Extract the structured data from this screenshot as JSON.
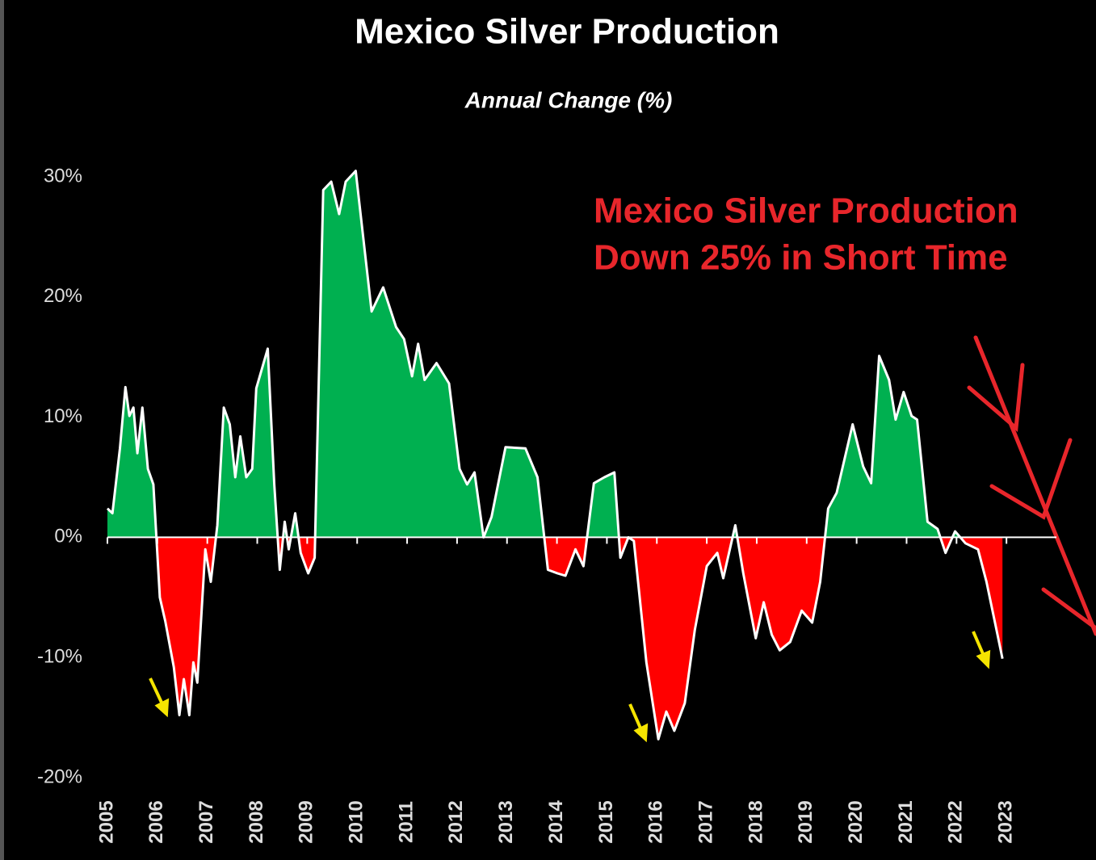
{
  "chart_data": {
    "type": "area",
    "title": "Mexico Silver Production",
    "subtitle": "Annual Change (%)",
    "annotation": [
      "Mexico Silver Production",
      "Down 25% in Short Time"
    ],
    "x": [
      2005.0,
      2005.1,
      2005.25,
      2005.36,
      2005.44,
      2005.52,
      2005.6,
      2005.7,
      2005.81,
      2005.92,
      2006.05,
      2006.16,
      2006.33,
      2006.44,
      2006.53,
      2006.64,
      2006.72,
      2006.8,
      2006.96,
      2007.07,
      2007.2,
      2007.33,
      2007.45,
      2007.56,
      2007.66,
      2007.78,
      2007.9,
      2007.98,
      2008.21,
      2008.34,
      2008.45,
      2008.55,
      2008.63,
      2008.76,
      2008.87,
      2009.02,
      2009.15,
      2009.32,
      2009.48,
      2009.64,
      2009.77,
      2009.97,
      2010.29,
      2010.52,
      2010.78,
      2010.94,
      2011.1,
      2011.22,
      2011.35,
      2011.59,
      2011.84,
      2012.05,
      2012.2,
      2012.35,
      2012.53,
      2012.69,
      2012.97,
      2013.37,
      2013.61,
      2013.82,
      2014.01,
      2014.17,
      2014.37,
      2014.53,
      2014.74,
      2014.95,
      2015.15,
      2015.27,
      2015.43,
      2015.54,
      2015.79,
      2016.03,
      2016.19,
      2016.35,
      2016.56,
      2016.76,
      2017.0,
      2017.21,
      2017.33,
      2017.57,
      2017.73,
      2017.98,
      2018.14,
      2018.3,
      2018.46,
      2018.67,
      2018.9,
      2019.11,
      2019.27,
      2019.43,
      2019.6,
      2019.92,
      2020.13,
      2020.29,
      2020.45,
      2020.65,
      2020.78,
      2020.94,
      2021.1,
      2021.21,
      2021.42,
      2021.62,
      2021.78,
      2021.97,
      2022.18,
      2022.43,
      2022.6,
      2022.8,
      2022.92
    ],
    "values": [
      2.4,
      2,
      7.4,
      12.5,
      10.1,
      10.8,
      7,
      10.8,
      5.7,
      4.4,
      -5,
      -7,
      -10.8,
      -14.8,
      -11.8,
      -14.8,
      -10.4,
      -12.1,
      -1,
      -3.7,
      1,
      10.8,
      9.4,
      5,
      8.4,
      5,
      5.7,
      12.4,
      15.7,
      4.4,
      -2.7,
      1.3,
      -1,
      2,
      -1.3,
      -3,
      -1.7,
      28.9,
      29.6,
      26.9,
      29.6,
      30.5,
      18.8,
      20.8,
      17.5,
      16.5,
      13.4,
      16.1,
      13.1,
      14.5,
      12.8,
      5.7,
      4.4,
      5.4,
      0,
      1.7,
      7.5,
      7.4,
      5,
      -2.7,
      -3,
      -3.2,
      -1,
      -2.4,
      4.5,
      5,
      5.4,
      -1.7,
      0,
      -0.3,
      -10.4,
      -16.8,
      -14.5,
      -16.1,
      -13.8,
      -7.7,
      -2.4,
      -1.3,
      -3.4,
      1,
      -3,
      -8.4,
      -5.4,
      -8.1,
      -9.4,
      -8.7,
      -6.1,
      -7.1,
      -3.7,
      2.4,
      3.7,
      9.4,
      5.9,
      4.5,
      15.1,
      13.1,
      9.8,
      12.1,
      10.1,
      9.8,
      1.3,
      0.7,
      -1.3,
      0.5,
      -0.5,
      -1,
      -3.7,
      -7.7,
      -10.1
    ],
    "color": "#ffffff",
    "positive_color": "#00b050",
    "negative_color": "#ff0000",
    "xlim": [
      2005,
      2024
    ],
    "xticks": [
      2005,
      2006,
      2007,
      2008,
      2009,
      2010,
      2011,
      2012,
      2013,
      2014,
      2015,
      2016,
      2017,
      2018,
      2019,
      2020,
      2021,
      2022,
      2023
    ],
    "ylim": [
      -20,
      30
    ],
    "yticks": [
      {
        "value": -20,
        "label": "-20%"
      },
      {
        "value": -10,
        "label": "-10%"
      },
      {
        "value": 0,
        "label": "0%"
      },
      {
        "value": 10,
        "label": "10%"
      },
      {
        "value": 20,
        "label": "20%"
      },
      {
        "value": 30,
        "label": "30%"
      }
    ]
  }
}
